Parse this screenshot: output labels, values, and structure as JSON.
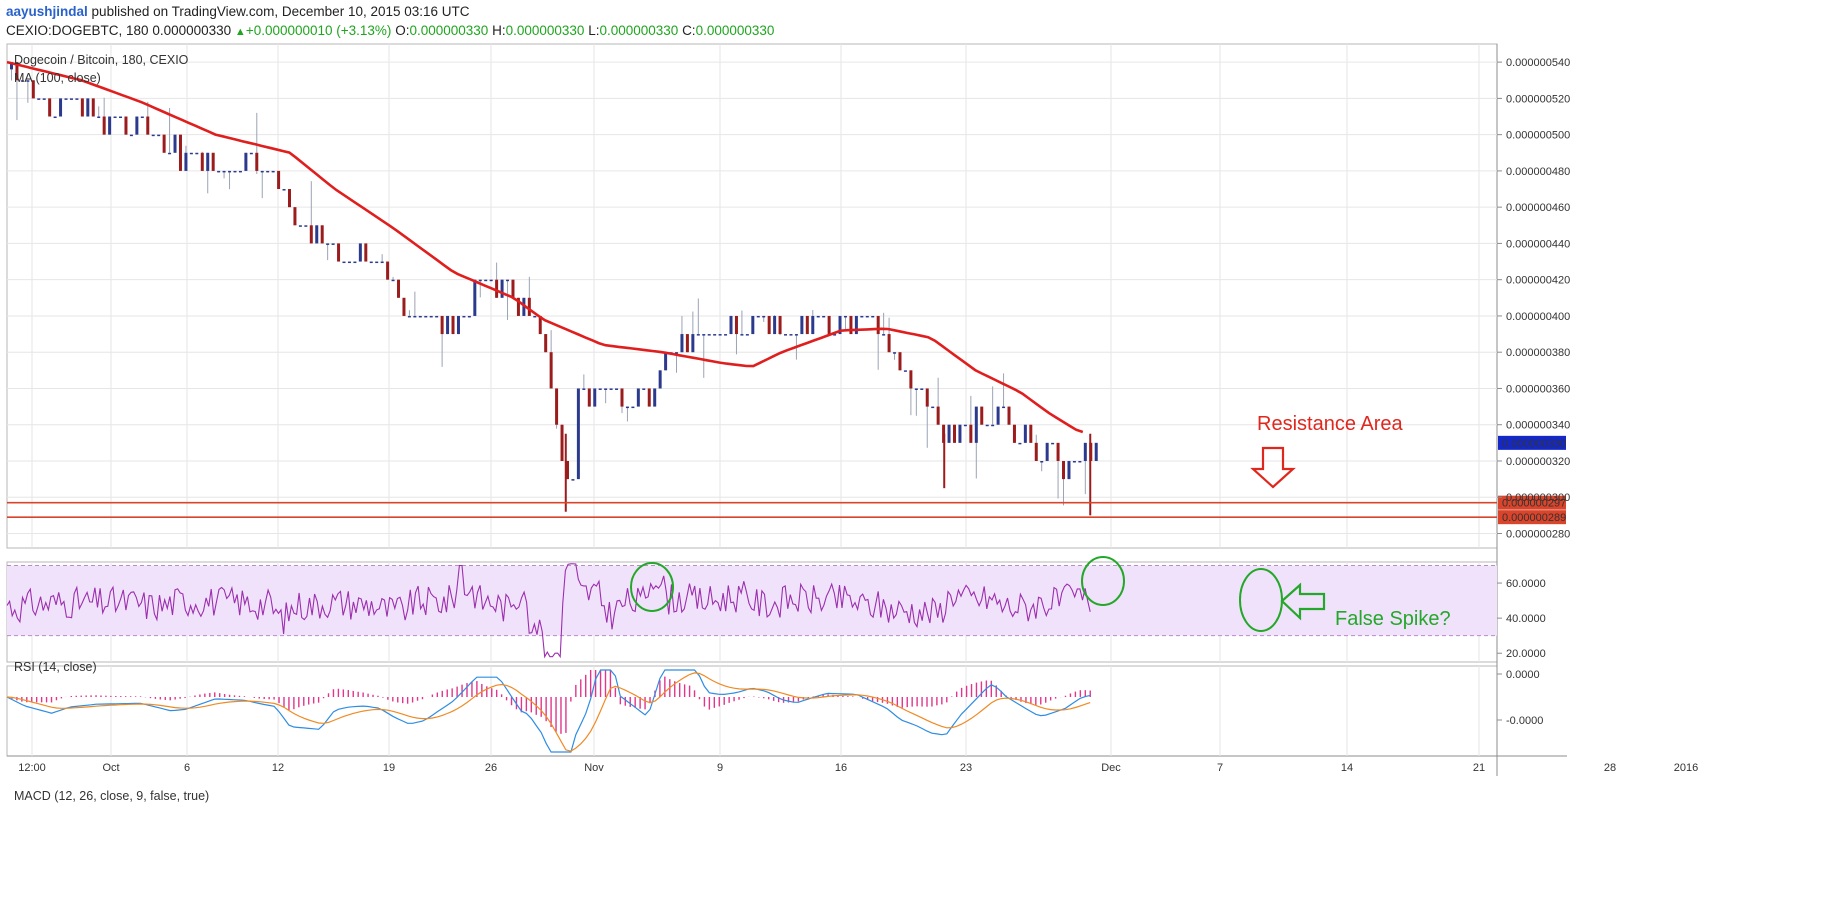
{
  "header": {
    "author": "aayushjindal",
    "published": "published on TradingView.com, December 10, 2015 03:16 UTC",
    "symbol": "CEXIO:DOGEBTC, 180",
    "last": "0.000000330",
    "change_arrow": "▲",
    "change": "+0.000000010 (+3.13%)",
    "o_label": "O:",
    "o_value": "0.000000330",
    "h_label": "H:",
    "h_value": "0.000000330",
    "l_label": "L:",
    "l_value": "0.000000330",
    "c_label": "C:",
    "c_value": "0.000000330"
  },
  "colors": {
    "up": "#2c3a8e",
    "down": "#9b1c1c",
    "ma": "#e01e1e",
    "support": "#d9442b",
    "rsi": "#9b2fae",
    "rsi_band": "#f1e2fb",
    "macd": "#2e8de3",
    "signal": "#f08a24",
    "hist": "#e0368c",
    "annot_red": "#e0271e",
    "annot_green": "#23a829",
    "last_badge": "#1428c8"
  },
  "chart_data": [
    {
      "type": "candlestick",
      "title": "Dogecoin / Bitcoin, 180, CEXIO",
      "indicator": "MA (100, close)",
      "x_ticks": [
        "12:00",
        "Oct",
        "6",
        "12",
        "19",
        "26",
        "Nov",
        "9",
        "16",
        "23",
        "Dec",
        "7",
        "14",
        "21",
        "28",
        "2016"
      ],
      "y_ticks": [
        "0.000000540",
        "0.000000520",
        "0.000000500",
        "0.000000480",
        "0.000000460",
        "0.000000440",
        "0.000000420",
        "0.000000400",
        "0.000000380",
        "0.000000360",
        "0.000000340",
        "0.000000320",
        "0.000000300",
        "0.000000280"
      ],
      "ylim": [
        2.72e-07,
        5.5e-07
      ],
      "price_path": [
        [
          0,
          536
        ],
        [
          0.012,
          526
        ],
        [
          0.03,
          518
        ],
        [
          0.06,
          510
        ],
        [
          0.09,
          503
        ],
        [
          0.11,
          490
        ],
        [
          0.14,
          488
        ],
        [
          0.16,
          485
        ],
        [
          0.18,
          476
        ],
        [
          0.19,
          452
        ],
        [
          0.21,
          440
        ],
        [
          0.23,
          435
        ],
        [
          0.25,
          425
        ],
        [
          0.27,
          400
        ],
        [
          0.3,
          396
        ],
        [
          0.315,
          420
        ],
        [
          0.33,
          418
        ],
        [
          0.35,
          400
        ],
        [
          0.36,
          375
        ],
        [
          0.37,
          320
        ],
        [
          0.375,
          300
        ],
        [
          0.38,
          352
        ],
        [
          0.4,
          372
        ],
        [
          0.41,
          355
        ],
        [
          0.43,
          350
        ],
        [
          0.44,
          385
        ],
        [
          0.46,
          390
        ],
        [
          0.48,
          390
        ],
        [
          0.5,
          400
        ],
        [
          0.52,
          392
        ],
        [
          0.54,
          395
        ],
        [
          0.57,
          398
        ],
        [
          0.59,
          385
        ],
        [
          0.61,
          360
        ],
        [
          0.63,
          330
        ],
        [
          0.64,
          340
        ],
        [
          0.665,
          345
        ],
        [
          0.69,
          325
        ],
        [
          0.71,
          320
        ],
        [
          0.725,
          325
        ]
      ],
      "ma_path": [
        [
          0,
          540
        ],
        [
          0.05,
          530
        ],
        [
          0.09,
          518
        ],
        [
          0.14,
          500
        ],
        [
          0.19,
          490
        ],
        [
          0.22,
          470
        ],
        [
          0.26,
          448
        ],
        [
          0.3,
          424
        ],
        [
          0.34,
          410
        ],
        [
          0.36,
          398
        ],
        [
          0.4,
          384
        ],
        [
          0.44,
          380
        ],
        [
          0.48,
          374
        ],
        [
          0.5,
          372
        ],
        [
          0.52,
          380
        ],
        [
          0.56,
          392
        ],
        [
          0.59,
          393
        ],
        [
          0.62,
          388
        ],
        [
          0.65,
          370
        ],
        [
          0.68,
          358
        ],
        [
          0.7,
          346
        ],
        [
          0.72,
          336
        ]
      ],
      "support_levels": [
        "0.000000297",
        "0.000000289"
      ],
      "support_values": [
        2.97e-07,
        2.89e-07
      ],
      "last_price": "0.000000330",
      "last_value": 3.3e-07,
      "annotations": [
        "Resistance Area",
        "False Spike?"
      ]
    },
    {
      "type": "line",
      "title": "RSI (14, close)",
      "y_ticks": [
        "60.0000",
        "40.0000",
        "20.0000"
      ],
      "ylim": [
        15,
        72
      ],
      "band": [
        30,
        70
      ]
    },
    {
      "type": "line",
      "title": "MACD (12, 26, close, 9, false, true)",
      "y_ticks": [
        "0.0000",
        "-0.0000"
      ],
      "series": []
    }
  ]
}
